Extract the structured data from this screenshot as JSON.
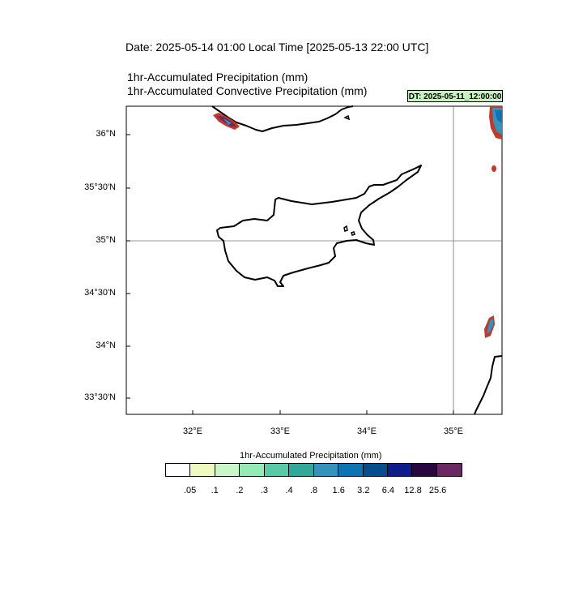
{
  "header": {
    "date_line": "Date: 2025-05-14  01:00 Local Time [2025-05-13  22:00 UTC]",
    "title_1": "1hr-Accumulated Precipitation   (mm)",
    "title_2": "1hr-Accumulated Convective Precipitation   (mm)",
    "dt_badge": "DT: 2025-05-11_12:00:00"
  },
  "map": {
    "lat_labels": [
      "36°N",
      "35°30'N",
      "35°N",
      "34°30'N",
      "34°N",
      "33°30'N"
    ],
    "lon_labels": [
      "32°E",
      "33°E",
      "34°E",
      "35°E"
    ],
    "grid_lines": [
      "35°N",
      "35°E"
    ]
  },
  "colorbar": {
    "title": "1hr-Accumulated Precipitation  (mm)",
    "colors": [
      "#ffffff",
      "#eefac0",
      "#c8f7c8",
      "#98eab4",
      "#5ac9a8",
      "#31a99a",
      "#3593bb",
      "#0d74b3",
      "#074d8c",
      "#0d1d8c",
      "#290741",
      "#6a2963"
    ],
    "labels": [
      ".05",
      ".1",
      ".2",
      ".3",
      ".4",
      ".8",
      "1.6",
      "3.2",
      "6.4",
      "12.8",
      "25.6"
    ]
  }
}
